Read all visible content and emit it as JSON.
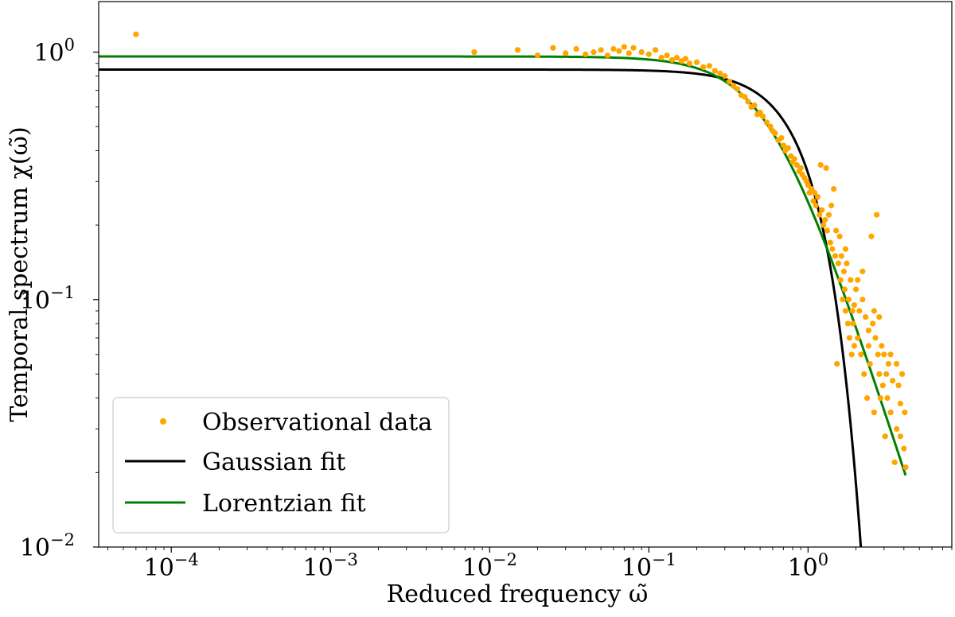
{
  "chart_data": {
    "type": "scatter+line",
    "title": "",
    "xlabel": "Reduced frequency ω̃",
    "ylabel": "Temporal spectrum χ(ω̃)",
    "xscale": "log",
    "yscale": "log",
    "xlim": [
      3.5e-05,
      8.0
    ],
    "ylim": [
      0.01,
      1.6
    ],
    "xticks": [
      {
        "value": 0.0001,
        "base": "10",
        "exp": "−4"
      },
      {
        "value": 0.001,
        "base": "10",
        "exp": "−3"
      },
      {
        "value": 0.01,
        "base": "10",
        "exp": "−2"
      },
      {
        "value": 0.1,
        "base": "10",
        "exp": "−1"
      },
      {
        "value": 1,
        "base": "10",
        "exp": "0"
      }
    ],
    "yticks": [
      {
        "value": 0.01,
        "base": "10",
        "exp": "−2"
      },
      {
        "value": 0.1,
        "base": "10",
        "exp": "−1"
      },
      {
        "value": 1,
        "base": "10",
        "exp": "0"
      }
    ],
    "legend_position": "lower-left",
    "colors": {
      "observational": "#FFA500",
      "gaussian": "#000000",
      "lorentzian": "#008000"
    },
    "series": [
      {
        "name": "Observational data",
        "kind": "scatter",
        "points": [
          [
            6e-05,
            1.18
          ],
          [
            0.008,
            1.0
          ],
          [
            0.015,
            1.02
          ],
          [
            0.02,
            0.97
          ],
          [
            0.025,
            1.04
          ],
          [
            0.03,
            0.99
          ],
          [
            0.035,
            1.03
          ],
          [
            0.04,
            0.98
          ],
          [
            0.045,
            1.0
          ],
          [
            0.05,
            1.02
          ],
          [
            0.055,
            0.97
          ],
          [
            0.06,
            1.03
          ],
          [
            0.065,
            1.01
          ],
          [
            0.07,
            1.05
          ],
          [
            0.075,
            0.99
          ],
          [
            0.08,
            1.04
          ],
          [
            0.09,
            1.0
          ],
          [
            0.1,
            0.98
          ],
          [
            0.11,
            1.02
          ],
          [
            0.12,
            0.95
          ],
          [
            0.13,
            0.97
          ],
          [
            0.14,
            0.93
          ],
          [
            0.15,
            0.95
          ],
          [
            0.16,
            0.92
          ],
          [
            0.17,
            0.94
          ],
          [
            0.18,
            0.9
          ],
          [
            0.2,
            0.91
          ],
          [
            0.22,
            0.87
          ],
          [
            0.24,
            0.88
          ],
          [
            0.26,
            0.84
          ],
          [
            0.28,
            0.82
          ],
          [
            0.3,
            0.8
          ],
          [
            0.32,
            0.76
          ],
          [
            0.34,
            0.73
          ],
          [
            0.36,
            0.71
          ],
          [
            0.38,
            0.67
          ],
          [
            0.4,
            0.66
          ],
          [
            0.42,
            0.63
          ],
          [
            0.44,
            0.6
          ],
          [
            0.46,
            0.61
          ],
          [
            0.48,
            0.56
          ],
          [
            0.5,
            0.57
          ],
          [
            0.52,
            0.55
          ],
          [
            0.55,
            0.52
          ],
          [
            0.58,
            0.5
          ],
          [
            0.6,
            0.48
          ],
          [
            0.62,
            0.47
          ],
          [
            0.65,
            0.44
          ],
          [
            0.68,
            0.45
          ],
          [
            0.7,
            0.42
          ],
          [
            0.72,
            0.4
          ],
          [
            0.75,
            0.41
          ],
          [
            0.78,
            0.38
          ],
          [
            0.8,
            0.36
          ],
          [
            0.82,
            0.37
          ],
          [
            0.85,
            0.35
          ],
          [
            0.88,
            0.33
          ],
          [
            0.9,
            0.34
          ],
          [
            0.92,
            0.32
          ],
          [
            0.95,
            0.31
          ],
          [
            0.98,
            0.3
          ],
          [
            1.0,
            0.29
          ],
          [
            1.02,
            0.27
          ],
          [
            1.05,
            0.28
          ],
          [
            1.08,
            0.25
          ],
          [
            1.1,
            0.27
          ],
          [
            1.12,
            0.24
          ],
          [
            1.15,
            0.26
          ],
          [
            1.18,
            0.22
          ],
          [
            1.2,
            0.35
          ],
          [
            1.22,
            0.23
          ],
          [
            1.25,
            0.2
          ],
          [
            1.28,
            0.21
          ],
          [
            1.3,
            0.34
          ],
          [
            1.32,
            0.19
          ],
          [
            1.35,
            0.22
          ],
          [
            1.38,
            0.17
          ],
          [
            1.4,
            0.24
          ],
          [
            1.42,
            0.16
          ],
          [
            1.45,
            0.28
          ],
          [
            1.48,
            0.15
          ],
          [
            1.5,
            0.19
          ],
          [
            1.52,
            0.055
          ],
          [
            1.55,
            0.14
          ],
          [
            1.58,
            0.18
          ],
          [
            1.6,
            0.12
          ],
          [
            1.62,
            0.15
          ],
          [
            1.65,
            0.1
          ],
          [
            1.68,
            0.13
          ],
          [
            1.7,
            0.11
          ],
          [
            1.72,
            0.09
          ],
          [
            1.75,
            0.14
          ],
          [
            1.78,
            0.08
          ],
          [
            1.8,
            0.1
          ],
          [
            1.82,
            0.07
          ],
          [
            1.85,
            0.12
          ],
          [
            1.88,
            0.06
          ],
          [
            1.9,
            0.09
          ],
          [
            1.92,
            0.08
          ],
          [
            1.95,
            0.065
          ],
          [
            2.0,
            0.11
          ],
          [
            2.05,
            0.07
          ],
          [
            2.1,
            0.09
          ],
          [
            2.15,
            0.06
          ],
          [
            2.2,
            0.1
          ],
          [
            2.25,
            0.05
          ],
          [
            2.3,
            0.085
          ],
          [
            2.35,
            0.04
          ],
          [
            2.4,
            0.075
          ],
          [
            2.45,
            0.055
          ],
          [
            2.5,
            0.18
          ],
          [
            2.55,
            0.08
          ],
          [
            2.6,
            0.035
          ],
          [
            2.65,
            0.07
          ],
          [
            2.7,
            0.22
          ],
          [
            2.75,
            0.06
          ],
          [
            2.8,
            0.05
          ],
          [
            2.85,
            0.04
          ],
          [
            2.9,
            0.065
          ],
          [
            2.95,
            0.045
          ],
          [
            3.0,
            0.06
          ],
          [
            3.05,
            0.028
          ],
          [
            3.1,
            0.05
          ],
          [
            3.15,
            0.04
          ],
          [
            3.2,
            0.055
          ],
          [
            3.3,
            0.035
          ],
          [
            3.4,
            0.047
          ],
          [
            3.5,
            0.022
          ],
          [
            3.6,
            0.03
          ],
          [
            3.7,
            0.045
          ],
          [
            3.8,
            0.038
          ],
          [
            3.9,
            0.05
          ],
          [
            4.0,
            0.025
          ],
          [
            4.05,
            0.035
          ],
          [
            4.1,
            0.021
          ],
          [
            2.2,
            0.13
          ],
          [
            1.95,
            0.095
          ],
          [
            2.05,
            0.12
          ],
          [
            2.4,
            0.065
          ],
          [
            2.6,
            0.09
          ],
          [
            3.3,
            0.06
          ],
          [
            3.6,
            0.055
          ],
          [
            3.8,
            0.028
          ],
          [
            2.8,
            0.085
          ],
          [
            1.72,
            0.16
          ]
        ]
      },
      {
        "name": "Gaussian fit",
        "kind": "line",
        "model": "gaussian",
        "params": {
          "amplitude": 0.85,
          "sigma": 0.72
        }
      },
      {
        "name": "Lorentzian fit",
        "kind": "line",
        "model": "lorentzian",
        "params": {
          "amplitude": 0.96,
          "gamma": 0.59
        }
      }
    ]
  }
}
